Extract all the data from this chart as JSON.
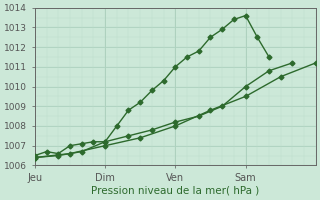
{
  "background_color": "#cce8d8",
  "plot_bg_color": "#cce8d8",
  "line_color": "#2d6a2d",
  "grid_major_color": "#aacfbc",
  "grid_minor_color": "#bbdcca",
  "xlabel": "Pression niveau de la mer( hPa )",
  "ylim": [
    1006,
    1014
  ],
  "yticks": [
    1006,
    1007,
    1008,
    1009,
    1010,
    1011,
    1012,
    1013,
    1014
  ],
  "xtick_labels": [
    "Jeu",
    "Dim",
    "Ven",
    "Sam"
  ],
  "xtick_positions": [
    0,
    24,
    48,
    72
  ],
  "xlim_max": 96,
  "vline_positions": [
    0,
    24,
    48,
    72
  ],
  "series1_x": [
    0,
    4,
    8,
    12,
    16,
    20,
    24,
    28,
    32,
    36,
    40,
    44,
    48,
    52,
    56,
    60,
    64,
    68,
    72,
    76,
    80
  ],
  "series1_y": [
    1006.5,
    1006.7,
    1006.6,
    1007.0,
    1007.1,
    1007.2,
    1007.2,
    1008.0,
    1008.8,
    1009.2,
    1009.8,
    1010.3,
    1011.0,
    1011.5,
    1011.8,
    1012.5,
    1012.9,
    1013.4,
    1013.6,
    1012.5,
    1011.5
  ],
  "series2_x": [
    0,
    8,
    16,
    24,
    32,
    40,
    48,
    56,
    64,
    72,
    80,
    88
  ],
  "series2_y": [
    1006.4,
    1006.5,
    1006.7,
    1007.2,
    1007.5,
    1007.8,
    1008.2,
    1008.5,
    1009.0,
    1010.0,
    1010.8,
    1011.2
  ],
  "series3_x": [
    0,
    12,
    24,
    36,
    48,
    60,
    72,
    84,
    96
  ],
  "series3_y": [
    1006.4,
    1006.6,
    1007.0,
    1007.4,
    1008.0,
    1008.8,
    1009.5,
    1010.5,
    1011.2
  ],
  "marker": "D",
  "marker_size": 2.5,
  "line_width": 1.0,
  "xlabel_fontsize": 7.5,
  "ytick_fontsize": 6.5,
  "xtick_fontsize": 7.0
}
